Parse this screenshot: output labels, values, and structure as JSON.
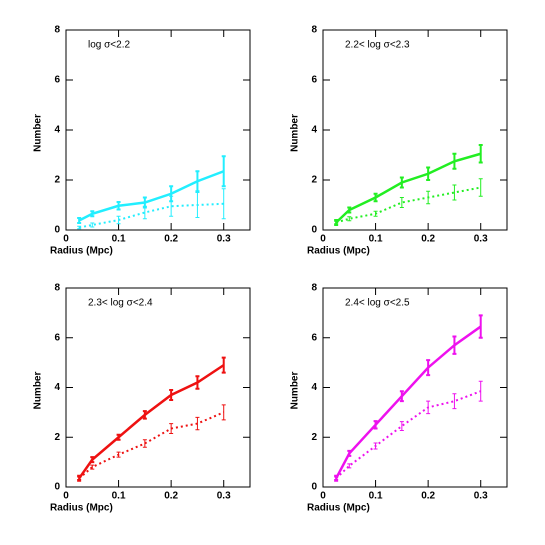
{
  "chart_data": [
    {
      "type": "line",
      "annotation": "log σ<2.2",
      "xlabel": "Radius (Mpc)",
      "ylabel": "Number",
      "x": [
        0.025,
        0.05,
        0.1,
        0.15,
        0.2,
        0.25,
        0.3
      ],
      "xlim": [
        0,
        0.35
      ],
      "xticks": [
        0,
        0.1,
        0.2,
        0.3
      ],
      "ylim": [
        0,
        8
      ],
      "yticks": [
        0,
        2,
        4,
        6,
        8
      ],
      "series": [
        {
          "color": "#22eeff",
          "linestyle": "solid",
          "values": [
            0.38,
            0.65,
            0.97,
            1.1,
            1.45,
            1.95,
            2.35
          ],
          "errors": [
            0.1,
            0.1,
            0.15,
            0.2,
            0.3,
            0.4,
            0.6
          ]
        },
        {
          "color": "#22eeff",
          "linestyle": "dotted",
          "values": [
            0.1,
            0.2,
            0.4,
            0.7,
            0.95,
            1.0,
            1.05
          ],
          "errors": [
            0.05,
            0.08,
            0.15,
            0.25,
            0.4,
            0.5,
            0.6
          ]
        }
      ]
    },
    {
      "type": "line",
      "annotation": "2.2< log σ<2.3",
      "xlabel": "Radius (Mpc)",
      "ylabel": "Number",
      "x": [
        0.025,
        0.05,
        0.1,
        0.15,
        0.2,
        0.25,
        0.3
      ],
      "xlim": [
        0,
        0.35
      ],
      "xticks": [
        0,
        0.1,
        0.2,
        0.3
      ],
      "ylim": [
        0,
        8
      ],
      "yticks": [
        0,
        2,
        4,
        6,
        8
      ],
      "series": [
        {
          "color": "#22ee22",
          "linestyle": "solid",
          "values": [
            0.3,
            0.8,
            1.3,
            1.9,
            2.25,
            2.75,
            3.05
          ],
          "errors": [
            0.1,
            0.1,
            0.15,
            0.2,
            0.25,
            0.3,
            0.35
          ]
        },
        {
          "color": "#22ee22",
          "linestyle": "dotted",
          "values": [
            0.3,
            0.45,
            0.65,
            1.1,
            1.3,
            1.5,
            1.7
          ],
          "errors": [
            0.05,
            0.08,
            0.1,
            0.2,
            0.25,
            0.3,
            0.35
          ]
        }
      ]
    },
    {
      "type": "line",
      "annotation": "2.3< log σ<2.4",
      "xlabel": "Radius (Mpc)",
      "ylabel": "Number",
      "x": [
        0.025,
        0.05,
        0.1,
        0.15,
        0.2,
        0.25,
        0.3
      ],
      "xlim": [
        0,
        0.35
      ],
      "xticks": [
        0,
        0.1,
        0.2,
        0.3
      ],
      "ylim": [
        0,
        8
      ],
      "yticks": [
        0,
        2,
        4,
        6,
        8
      ],
      "series": [
        {
          "color": "#ee1111",
          "linestyle": "solid",
          "values": [
            0.35,
            1.1,
            2.0,
            2.9,
            3.7,
            4.2,
            4.9
          ],
          "errors": [
            0.1,
            0.1,
            0.1,
            0.15,
            0.2,
            0.25,
            0.3
          ]
        },
        {
          "color": "#ee1111",
          "linestyle": "dotted",
          "values": [
            0.35,
            0.8,
            1.3,
            1.75,
            2.35,
            2.55,
            3.0
          ],
          "errors": [
            0.05,
            0.08,
            0.1,
            0.15,
            0.2,
            0.25,
            0.3
          ]
        }
      ]
    },
    {
      "type": "line",
      "annotation": "2.4< log σ<2.5",
      "xlabel": "Radius (Mpc)",
      "ylabel": "Number",
      "x": [
        0.025,
        0.05,
        0.1,
        0.15,
        0.2,
        0.25,
        0.3
      ],
      "xlim": [
        0,
        0.35
      ],
      "xticks": [
        0,
        0.1,
        0.2,
        0.3
      ],
      "ylim": [
        0,
        8
      ],
      "yticks": [
        0,
        2,
        4,
        6,
        8
      ],
      "series": [
        {
          "color": "#ee11ee",
          "linestyle": "solid",
          "values": [
            0.35,
            1.35,
            2.5,
            3.65,
            4.8,
            5.7,
            6.45
          ],
          "errors": [
            0.1,
            0.1,
            0.15,
            0.2,
            0.3,
            0.35,
            0.45
          ]
        },
        {
          "color": "#ee11ee",
          "linestyle": "dotted",
          "values": [
            0.35,
            0.85,
            1.65,
            2.45,
            3.2,
            3.45,
            3.85
          ],
          "errors": [
            0.05,
            0.08,
            0.12,
            0.18,
            0.25,
            0.3,
            0.4
          ]
        }
      ]
    }
  ]
}
